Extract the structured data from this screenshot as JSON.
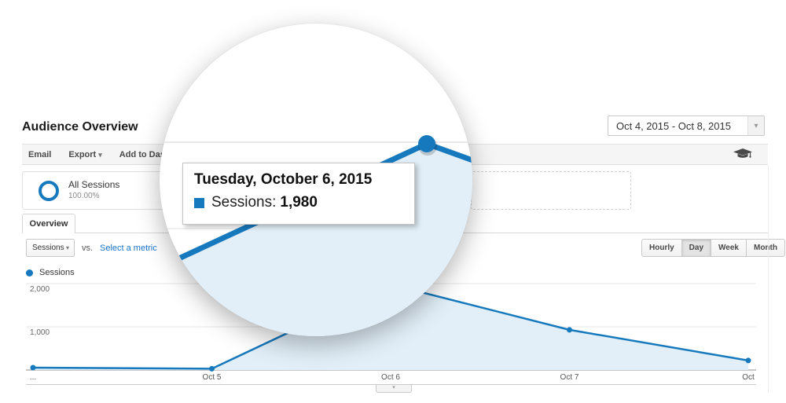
{
  "page": {
    "title": "Audience Overview"
  },
  "date_range": {
    "label": "Oct 4, 2015 - Oct 8, 2015"
  },
  "toolbar": {
    "email": "Email",
    "export": "Export",
    "add_to_dashboard": "Add to Dashboard"
  },
  "segments": {
    "all_sessions": {
      "label": "All Sessions",
      "percent": "100.00%"
    }
  },
  "tabs": {
    "overview": "Overview"
  },
  "controls": {
    "metric_selector": "Sessions",
    "vs_label": "vs.",
    "select_metric_link": "Select a metric",
    "granularity": [
      "Hourly",
      "Day",
      "Week",
      "Month"
    ],
    "granularity_selected": "Day"
  },
  "legend": {
    "sessions": "Sessions"
  },
  "tooltip": {
    "date": "Tuesday, October 6, 2015",
    "metric_label": "Sessions:",
    "value": "1,980"
  },
  "colors": {
    "accent": "#1779bd",
    "link": "#1a73c9"
  },
  "chart_data": {
    "type": "area",
    "categories": [
      "...",
      "Oct 5",
      "Oct 6",
      "Oct 7",
      "Oct"
    ],
    "series": [
      {
        "name": "Sessions",
        "values": [
          55,
          30,
          1980,
          930,
          220
        ]
      }
    ],
    "title": "",
    "xlabel": "",
    "ylabel": "Sessions",
    "ylim": [
      0,
      2400
    ],
    "yticks": [
      {
        "value": 1000,
        "label": "1,000"
      },
      {
        "value": 2000,
        "label": "2,000"
      }
    ],
    "grid": true,
    "legend_position": "top-left",
    "highlighted_point": {
      "category": "Oct 6",
      "value_label": "1,980"
    },
    "colors": {
      "line": "#1779bd",
      "fill": "#e2eff8",
      "marker": "#1779bd"
    }
  }
}
